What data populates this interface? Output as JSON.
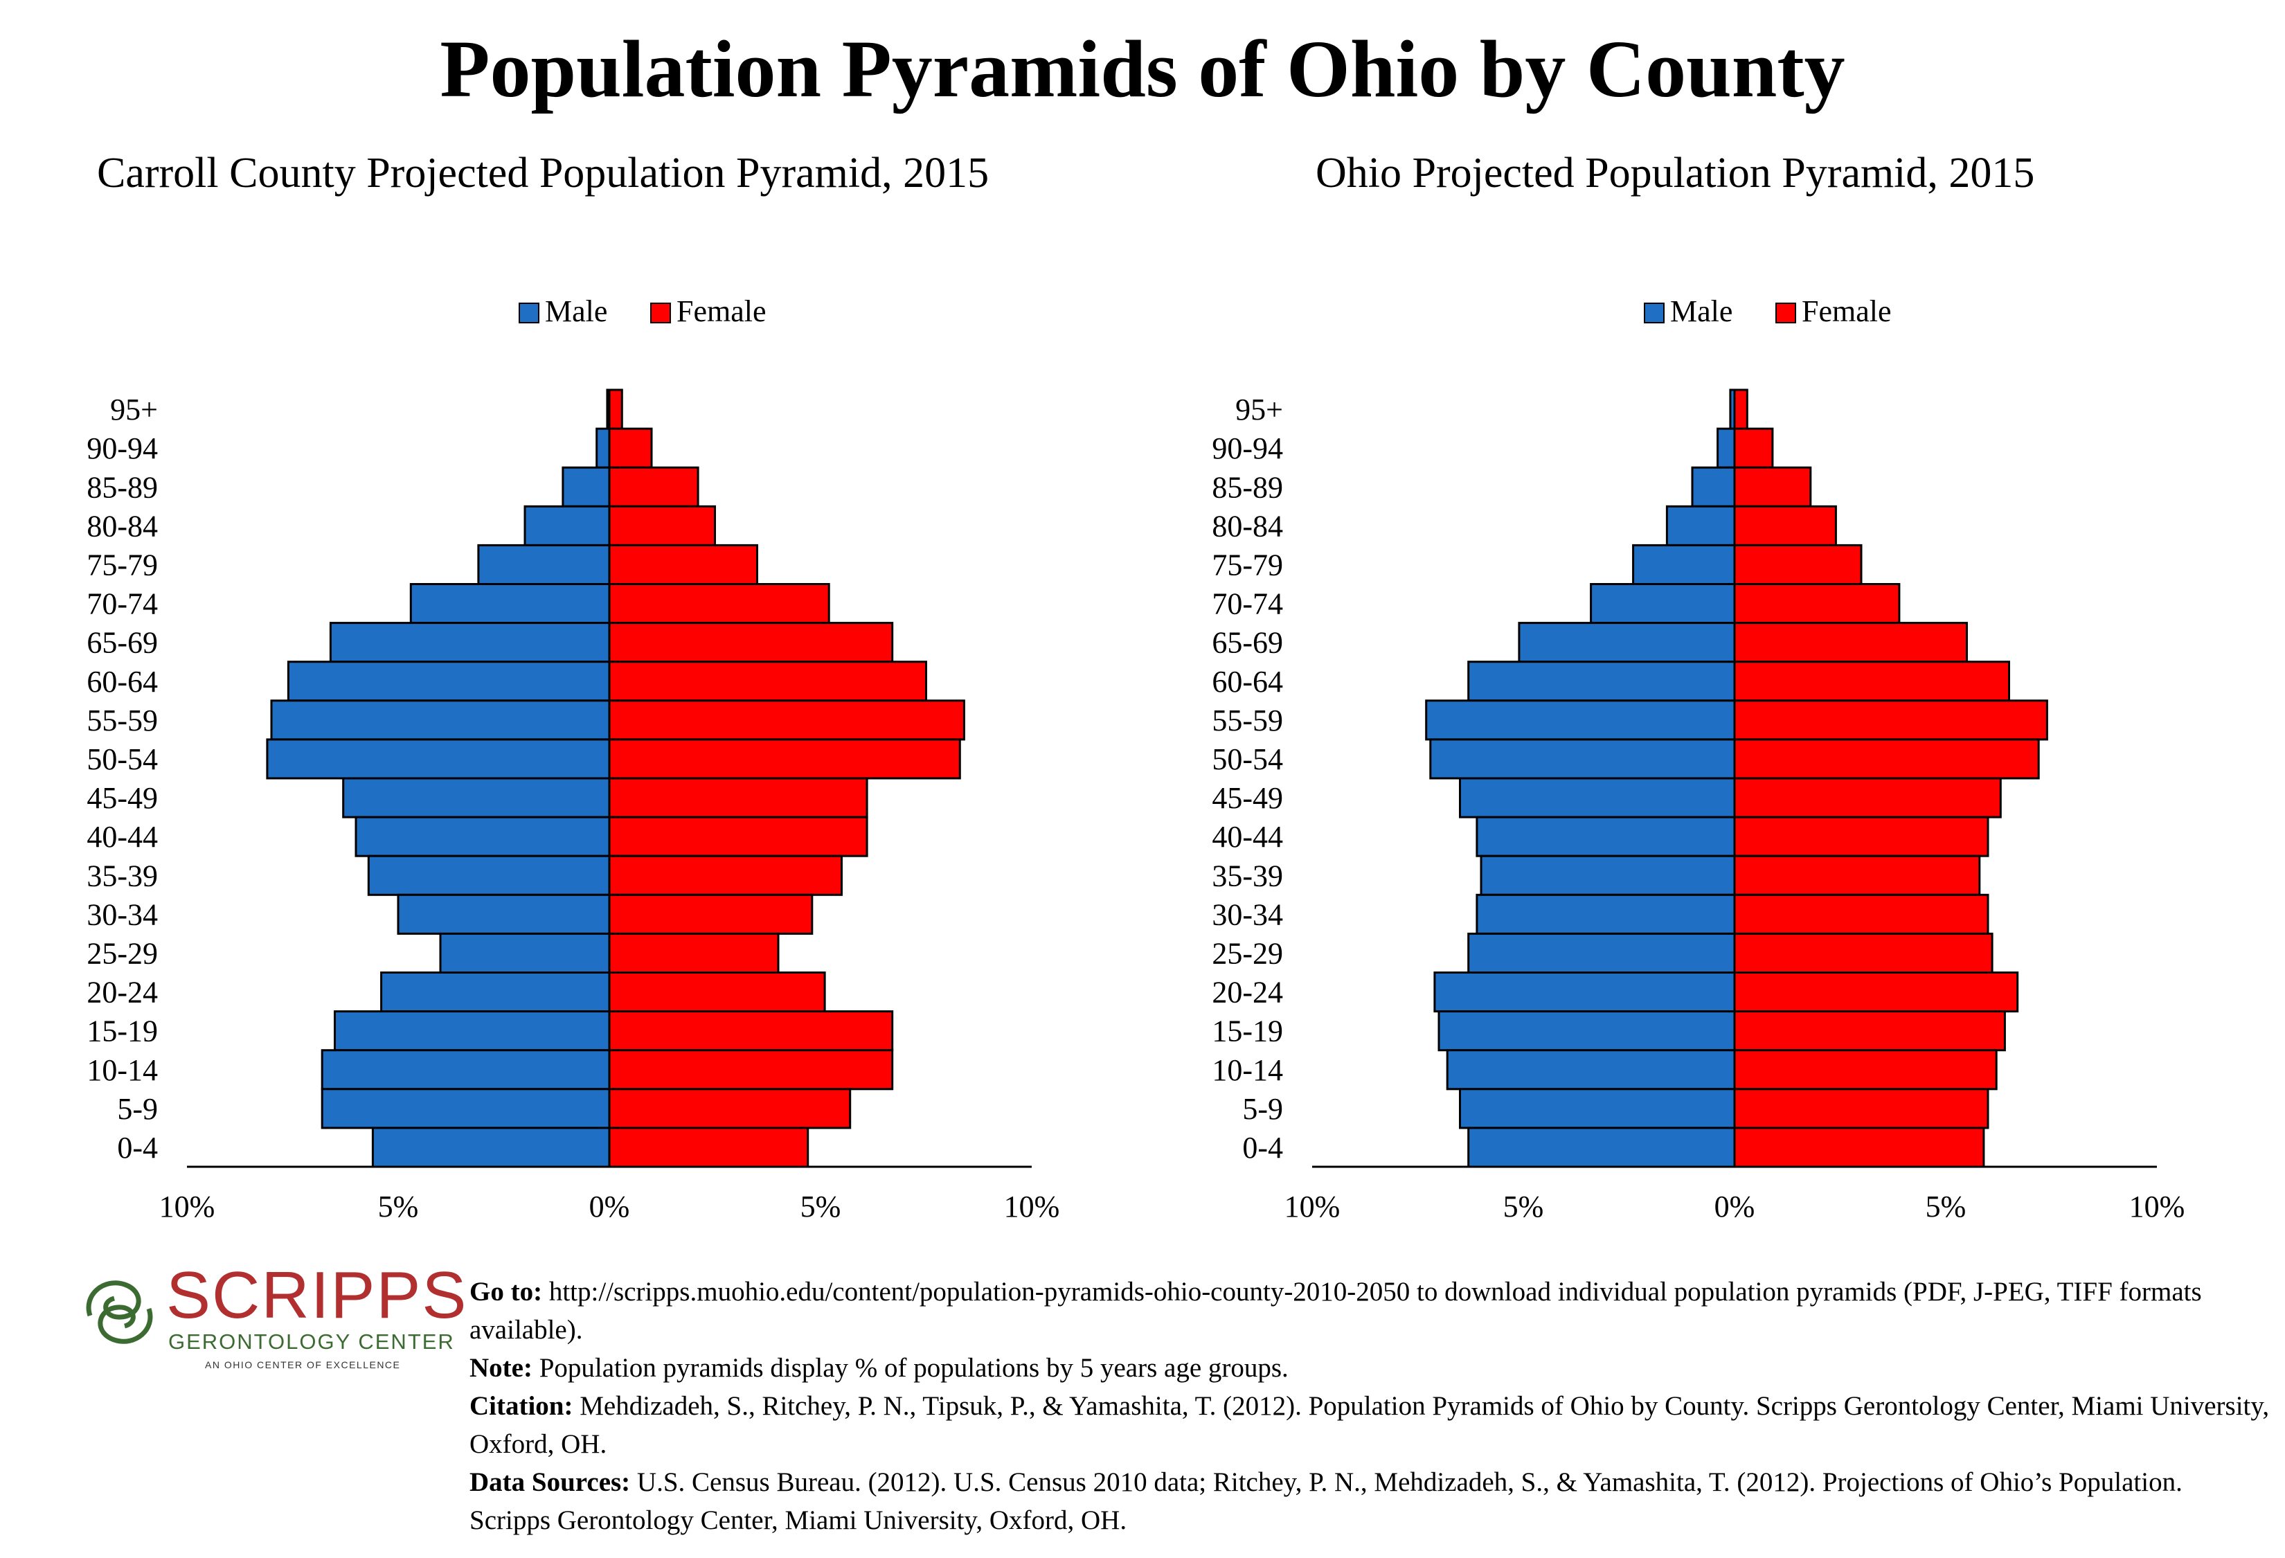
{
  "title": "Population Pyramids of Ohio by County",
  "legend": {
    "male": "Male",
    "female": "Female"
  },
  "colors": {
    "male": "#1f6fc5",
    "female": "#ff0000",
    "outline": "#000000"
  },
  "chart_data": [
    {
      "type": "bar",
      "orientation": "horizontal-pyramid",
      "title": "Carroll County Projected Population Pyramid, 2015",
      "categories": [
        "95+",
        "90-94",
        "85-89",
        "80-84",
        "75-79",
        "70-74",
        "65-69",
        "60-64",
        "55-59",
        "50-54",
        "45-49",
        "40-44",
        "35-39",
        "30-34",
        "25-29",
        "20-24",
        "15-19",
        "10-14",
        "5-9",
        "0-4"
      ],
      "series": [
        {
          "name": "Male",
          "values": [
            0.05,
            0.3,
            1.1,
            2.0,
            3.1,
            4.7,
            6.6,
            7.6,
            8.0,
            8.1,
            6.3,
            6.0,
            5.7,
            5.0,
            4.0,
            5.4,
            6.5,
            6.8,
            6.8,
            5.6
          ]
        },
        {
          "name": "Female",
          "values": [
            0.3,
            1.0,
            2.1,
            2.5,
            3.5,
            5.2,
            6.7,
            7.5,
            8.4,
            8.3,
            6.1,
            6.1,
            5.5,
            4.8,
            4.0,
            5.1,
            6.7,
            6.7,
            5.7,
            4.7
          ]
        }
      ],
      "x_ticks": [
        "10%",
        "5%",
        "0%",
        "5%",
        "10%"
      ],
      "xlim": [
        -10,
        10
      ]
    },
    {
      "type": "bar",
      "orientation": "horizontal-pyramid",
      "title": "Ohio Projected Population Pyramid, 2015",
      "categories": [
        "95+",
        "90-94",
        "85-89",
        "80-84",
        "75-79",
        "70-74",
        "65-69",
        "60-64",
        "55-59",
        "50-54",
        "45-49",
        "40-44",
        "35-39",
        "30-34",
        "25-29",
        "20-24",
        "15-19",
        "10-14",
        "5-9",
        "0-4"
      ],
      "series": [
        {
          "name": "Male",
          "values": [
            0.1,
            0.4,
            1.0,
            1.6,
            2.4,
            3.4,
            5.1,
            6.3,
            7.3,
            7.2,
            6.5,
            6.1,
            6.0,
            6.1,
            6.3,
            7.1,
            7.0,
            6.8,
            6.5,
            6.3
          ]
        },
        {
          "name": "Female",
          "values": [
            0.3,
            0.9,
            1.8,
            2.4,
            3.0,
            3.9,
            5.5,
            6.5,
            7.4,
            7.2,
            6.3,
            6.0,
            5.8,
            6.0,
            6.1,
            6.7,
            6.4,
            6.2,
            6.0,
            5.9
          ]
        }
      ],
      "x_ticks": [
        "10%",
        "5%",
        "0%",
        "5%",
        "10%"
      ],
      "xlim": [
        -10,
        10
      ]
    }
  ],
  "logo": {
    "name": "SCRIPPS",
    "subtitle": "GERONTOLOGY CENTER",
    "tagline": "AN OHIO CENTER OF EXCELLENCE"
  },
  "footer": {
    "goto_label": "Go to:",
    "goto_text": " http://scripps.muohio.edu/content/population-pyramids-ohio-county-2010-2050 to download individual population pyramids (PDF, J-PEG, TIFF formats available).",
    "note_label": "Note:",
    "note_text": " Population pyramids display % of populations by 5 years age groups.",
    "citation_label": "Citation:",
    "citation_text": " Mehdizadeh, S., Ritchey, P. N., Tipsuk, P., & Yamashita, T. (2012). Population Pyramids of Ohio by County. Scripps Gerontology Center, Miami University, Oxford, OH.",
    "sources_label": "Data Sources:",
    "sources_text": " U.S. Census Bureau. (2012). U.S. Census 2010 data; Ritchey, P. N., Mehdizadeh, S., & Yamashita, T. (2012). Projections of Ohio’s Population. Scripps Gerontology Center, Miami University, Oxford, OH."
  }
}
